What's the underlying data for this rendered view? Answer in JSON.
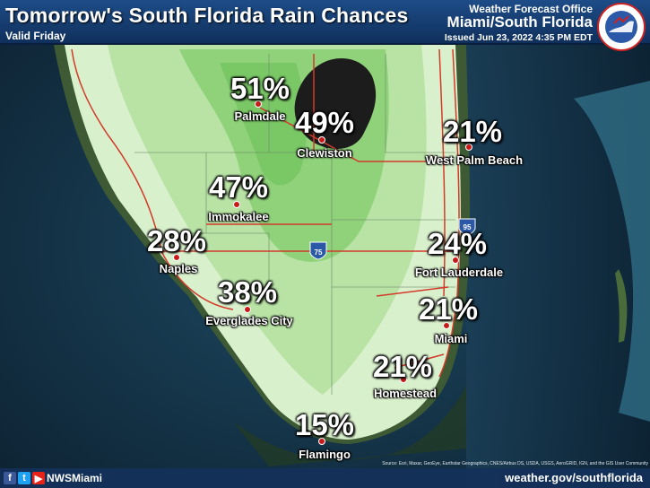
{
  "header": {
    "title": "Tomorrow's South Florida Rain Chances",
    "valid": "Valid Friday",
    "office_line1": "Weather Forecast Office",
    "office_line2": "Miami/South Florida",
    "issued": "Issued Jun 23, 2022 4:35 PM EDT",
    "logo_text": "NATIONAL WEATHER SERVICE"
  },
  "cities": [
    {
      "name": "Palmdale",
      "chance": "51%"
    },
    {
      "name": "Clewiston",
      "chance": "49%"
    },
    {
      "name": "West Palm Beach",
      "chance": "21%"
    },
    {
      "name": "Immokalee",
      "chance": "47%"
    },
    {
      "name": "Naples",
      "chance": "28%"
    },
    {
      "name": "Fort Lauderdale",
      "chance": "24%"
    },
    {
      "name": "Everglades City",
      "chance": "38%"
    },
    {
      "name": "Miami",
      "chance": "21%"
    },
    {
      "name": "Homestead",
      "chance": "21%"
    },
    {
      "name": "Flamingo",
      "chance": "15%"
    }
  ],
  "highways": {
    "i95": "95",
    "i75": "75"
  },
  "footer": {
    "handle": "NWSMiami",
    "website": "weather.gov/southflorida",
    "credits": "Source: Esri, Maxar, GeoEye, Earthstar Geographics, CNES/Airbus DS, USDA, USGS, AeroGRID, IGN, and the GIS User Community",
    "social_icons": [
      "facebook-icon",
      "twitter-icon",
      "youtube-icon"
    ]
  },
  "colors": {
    "header": "#1d4c87",
    "rain_high": "#8fd27a",
    "rain_mid": "#b8e3a5",
    "rain_low": "#d9f0cc",
    "lake": "#1c1c1c",
    "roads": "#d23b2a",
    "city_dot": "#c91a1a"
  }
}
